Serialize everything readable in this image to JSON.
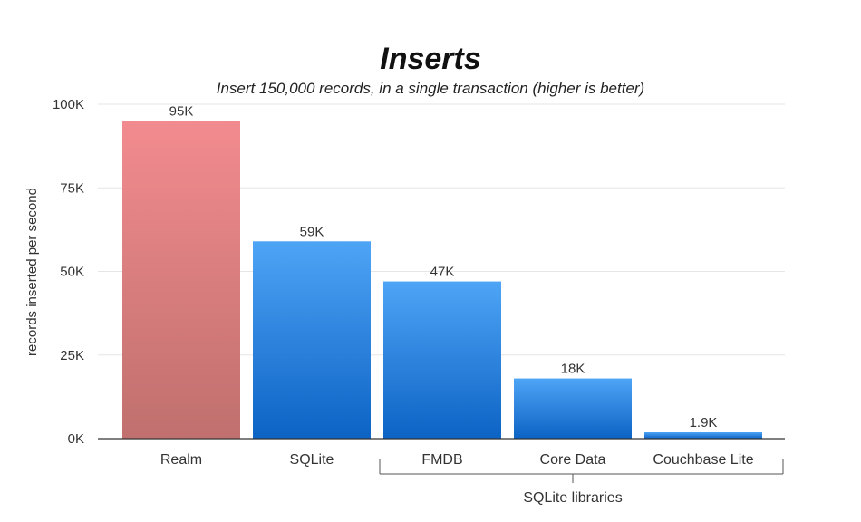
{
  "chart_data": {
    "type": "bar",
    "title": "Inserts",
    "subtitle": "Insert 150,000 records, in a single transaction (higher is better)",
    "ylabel": "records inserted per second",
    "xlabel": "",
    "ylim": [
      0,
      100000
    ],
    "yticks": [
      0,
      25000,
      50000,
      75000,
      100000
    ],
    "ytick_labels": [
      "0K",
      "25K",
      "50K",
      "75K",
      "100K"
    ],
    "grid": true,
    "categories": [
      "Realm",
      "SQLite",
      "FMDB",
      "Core Data",
      "Couchbase Lite"
    ],
    "values": [
      95000,
      59000,
      47000,
      18000,
      1900
    ],
    "data_labels": [
      "95K",
      "59K",
      "47K",
      "18K",
      "1.9K"
    ],
    "bar_colors": [
      "realm",
      "sqlite",
      "sqlite",
      "sqlite",
      "sqlite"
    ],
    "group_bracket": {
      "label": "SQLite libraries",
      "categories": [
        "FMDB",
        "Core Data",
        "Couchbase Lite"
      ]
    }
  },
  "colors": {
    "realm_top": "#f28b8f",
    "realm_bottom": "#c0706e",
    "sqlite_top": "#4ea4f5",
    "sqlite_bottom": "#0d63c4",
    "grid": "#e6e6e6",
    "axis": "#333333",
    "text": "#333333"
  }
}
